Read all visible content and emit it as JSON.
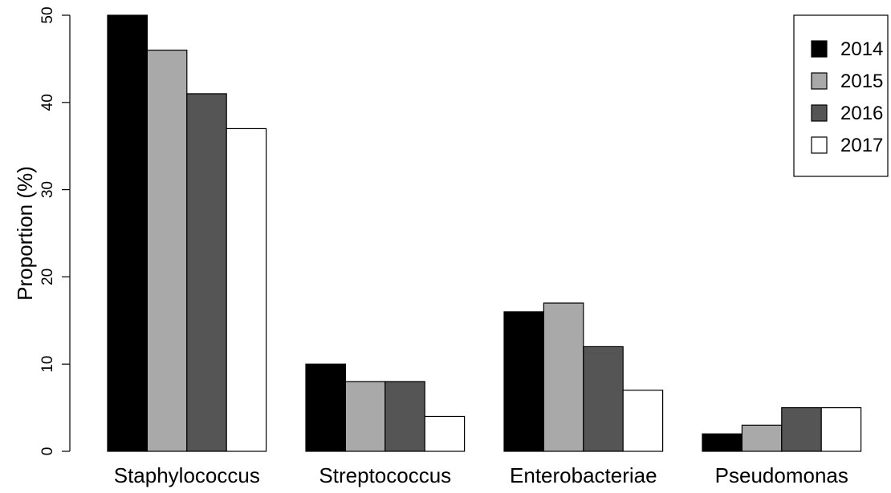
{
  "chart_data": {
    "type": "bar",
    "title": "",
    "xlabel": "",
    "ylabel": "Proportion (%)",
    "ylim": [
      0,
      50
    ],
    "yticks": [
      "0",
      "10",
      "20",
      "30",
      "40",
      "50"
    ],
    "categories": [
      "Staphylococcus",
      "Streptococcus",
      "Enterobacteriae",
      "Pseudomonas"
    ],
    "series": [
      {
        "name": "2014",
        "color": "#000000",
        "values": [
          50,
          10,
          16,
          2
        ]
      },
      {
        "name": "2015",
        "color": "#a9a9a9",
        "values": [
          46,
          8,
          17,
          3
        ]
      },
      {
        "name": "2016",
        "color": "#555555",
        "values": [
          41,
          8,
          12,
          5
        ]
      },
      {
        "name": "2017",
        "color": "#ffffff",
        "values": [
          37,
          4,
          7,
          5
        ]
      }
    ],
    "grid": false,
    "legend": {
      "position": "top-right"
    }
  }
}
